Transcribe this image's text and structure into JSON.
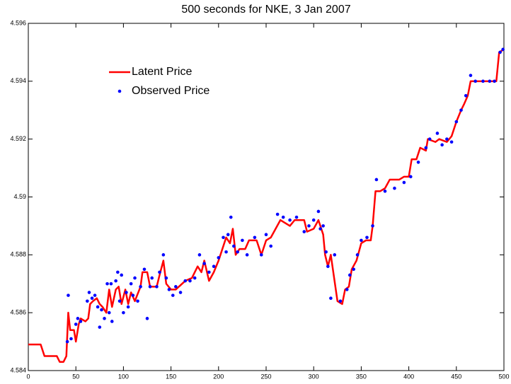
{
  "chart_data": {
    "type": "line",
    "title": "500 seconds for NKE, 3 Jan 2007",
    "xlim": [
      0,
      500
    ],
    "xticks": [
      0,
      50,
      100,
      150,
      200,
      250,
      300,
      350,
      400,
      450,
      500
    ],
    "ylim": [
      4.584,
      4.596
    ],
    "yticks": [
      4.584,
      4.586,
      4.588,
      4.59,
      4.592,
      4.594,
      4.596
    ],
    "legend": "upper-left",
    "series": [
      {
        "name": "Latent Price",
        "color": "#ff0000",
        "style": "line",
        "x": [
          0,
          10,
          13,
          17,
          25,
          30,
          33,
          37,
          40,
          42,
          44,
          48,
          50,
          53,
          55,
          60,
          63,
          65,
          68,
          72,
          75,
          78,
          82,
          85,
          88,
          92,
          95,
          98,
          102,
          105,
          108,
          112,
          118,
          120,
          125,
          128,
          132,
          135,
          138,
          142,
          145,
          150,
          155,
          165,
          172,
          178,
          182,
          185,
          190,
          195,
          200,
          205,
          208,
          212,
          215,
          218,
          222,
          228,
          232,
          240,
          245,
          250,
          255,
          260,
          265,
          270,
          275,
          280,
          290,
          293,
          300,
          305,
          310,
          312,
          315,
          318,
          325,
          330,
          333,
          337,
          340,
          345,
          350,
          355,
          360,
          362,
          365,
          370,
          375,
          380,
          390,
          395,
          400,
          403,
          408,
          412,
          418,
          420,
          428,
          432,
          440,
          445,
          450,
          455,
          458,
          462,
          465,
          470,
          480,
          487,
          490,
          492,
          495,
          500
        ],
        "values": [
          4.5849,
          4.5849,
          4.5849,
          4.5845,
          4.5845,
          4.5845,
          4.5843,
          4.5843,
          4.5845,
          4.586,
          4.5854,
          4.5854,
          4.585,
          4.5856,
          4.5858,
          4.5857,
          4.5858,
          4.5863,
          4.5864,
          4.5865,
          4.5863,
          4.5862,
          4.586,
          4.5868,
          4.5862,
          4.5868,
          4.5869,
          4.5863,
          4.5868,
          4.5863,
          4.5867,
          4.5864,
          4.5869,
          4.5874,
          4.5874,
          4.5869,
          4.5869,
          4.5869,
          4.5873,
          4.5878,
          4.587,
          4.5868,
          4.5868,
          4.5871,
          4.5872,
          4.5876,
          4.5874,
          4.5878,
          4.5871,
          4.5874,
          4.5878,
          4.5883,
          4.5886,
          4.5884,
          4.5889,
          4.588,
          4.5882,
          4.5882,
          4.5885,
          4.5885,
          4.588,
          4.5885,
          4.5886,
          4.5889,
          4.5892,
          4.5891,
          4.589,
          4.5892,
          4.5892,
          4.5888,
          4.5889,
          4.5892,
          4.5887,
          4.588,
          4.5876,
          4.588,
          4.5864,
          4.5863,
          4.5868,
          4.5869,
          4.5875,
          4.5878,
          4.5884,
          4.5885,
          4.5885,
          4.589,
          4.5902,
          4.5902,
          4.5903,
          4.5906,
          4.5906,
          4.5907,
          4.5907,
          4.5913,
          4.5913,
          4.5917,
          4.5916,
          4.592,
          4.5919,
          4.592,
          4.5919,
          4.5921,
          4.5926,
          4.593,
          4.5932,
          4.5935,
          4.594,
          4.594,
          4.594,
          4.594,
          4.594,
          4.594,
          4.595,
          4.5951
        ]
      },
      {
        "name": "Observed Price",
        "color": "#0000ff",
        "style": "markers",
        "x": [
          41,
          42,
          45,
          50,
          52,
          55,
          62,
          64,
          67,
          70,
          73,
          75,
          77,
          80,
          83,
          85,
          87,
          88,
          92,
          94,
          96,
          98,
          100,
          103,
          105,
          108,
          110,
          112,
          115,
          118,
          122,
          125,
          128,
          130,
          135,
          138,
          142,
          145,
          148,
          152,
          155,
          160,
          165,
          170,
          175,
          180,
          185,
          190,
          195,
          200,
          205,
          208,
          210,
          213,
          216,
          220,
          225,
          230,
          238,
          245,
          250,
          255,
          262,
          268,
          275,
          282,
          290,
          295,
          300,
          305,
          307,
          310,
          313,
          315,
          318,
          322,
          328,
          335,
          338,
          342,
          346,
          350,
          356,
          362,
          366,
          375,
          385,
          395,
          402,
          410,
          418,
          422,
          430,
          435,
          440,
          445,
          450,
          455,
          460,
          465,
          470,
          478,
          485,
          490,
          496,
          499
        ],
        "values": [
          4.585,
          4.5866,
          4.5851,
          4.5856,
          4.5858,
          4.5857,
          4.5864,
          4.5867,
          4.5865,
          4.5866,
          4.5862,
          4.5855,
          4.5861,
          4.5858,
          4.587,
          4.586,
          4.587,
          4.5857,
          4.5871,
          4.5874,
          4.5864,
          4.5873,
          4.586,
          4.5867,
          4.5862,
          4.587,
          4.5866,
          4.5872,
          4.5864,
          4.5869,
          4.5875,
          4.5858,
          4.5869,
          4.5872,
          4.5869,
          4.5874,
          4.588,
          4.5872,
          4.5868,
          4.5866,
          4.5869,
          4.5867,
          4.5871,
          4.5871,
          4.5872,
          4.588,
          4.5877,
          4.5874,
          4.5876,
          4.5879,
          4.5886,
          4.5881,
          4.5887,
          4.5893,
          4.5883,
          4.5881,
          4.5885,
          4.588,
          4.5886,
          4.588,
          4.5887,
          4.5883,
          4.5894,
          4.5893,
          4.5892,
          4.5893,
          4.5888,
          4.589,
          4.5892,
          4.5895,
          4.5889,
          4.589,
          4.5881,
          4.5876,
          4.5865,
          4.588,
          4.5864,
          4.5868,
          4.5873,
          4.5875,
          4.588,
          4.5885,
          4.5886,
          4.589,
          4.5906,
          4.5902,
          4.5903,
          4.5905,
          4.5907,
          4.5912,
          4.5917,
          4.592,
          4.5922,
          4.5918,
          4.592,
          4.5919,
          4.5926,
          4.593,
          4.5935,
          4.5942,
          4.594,
          4.594,
          4.594,
          4.594,
          4.595,
          4.5951
        ]
      }
    ]
  }
}
